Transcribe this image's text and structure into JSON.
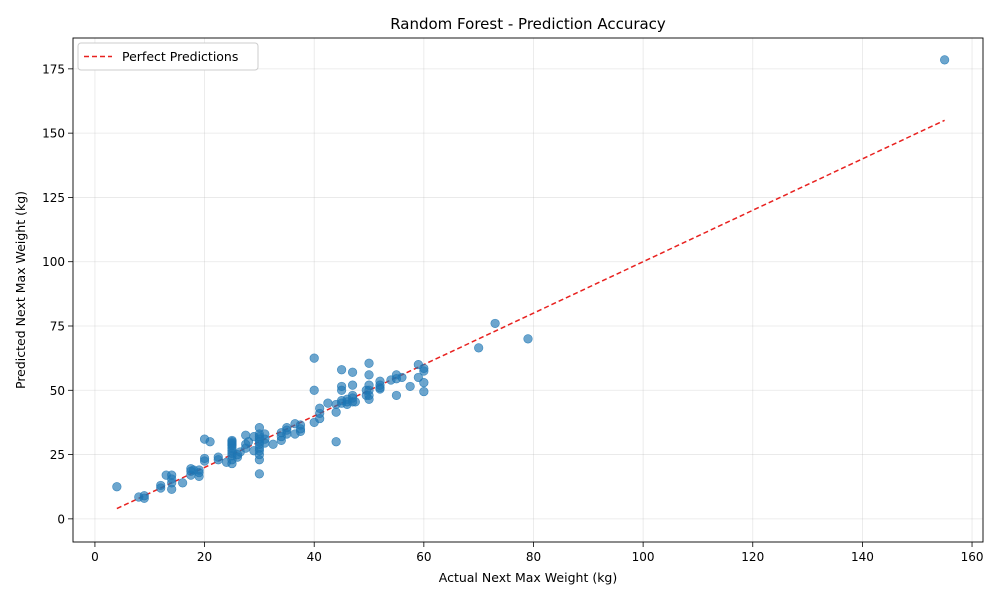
{
  "chart_data": {
    "type": "scatter",
    "title": "Random Forest - Prediction Accuracy",
    "xlabel": "Actual Next Max Weight (kg)",
    "ylabel": "Predicted Next Max Weight (kg)",
    "xlim": [
      -4,
      162
    ],
    "ylim": [
      -9,
      187
    ],
    "xticks": [
      0,
      20,
      40,
      60,
      80,
      100,
      120,
      140,
      160
    ],
    "yticks": [
      0,
      25,
      50,
      75,
      100,
      125,
      150,
      175
    ],
    "grid": true,
    "legend": {
      "position": "top-left",
      "entries": [
        "Perfect Predictions"
      ]
    },
    "series": [
      {
        "name": "",
        "kind": "scatter",
        "color": "#1f77b4",
        "x": [
          4,
          8,
          9,
          9,
          12,
          12,
          13,
          14,
          14,
          14,
          14,
          16,
          17.5,
          17.5,
          17.5,
          18,
          19,
          19,
          19,
          20,
          20,
          20,
          21,
          22.5,
          22.5,
          24,
          25,
          25,
          25,
          25,
          25,
          25,
          25,
          25,
          25,
          25,
          25,
          26,
          26,
          26.5,
          27.5,
          27.5,
          27.5,
          28,
          29,
          29,
          30,
          30,
          30,
          30,
          30,
          30,
          30,
          30,
          30,
          30,
          30,
          31,
          31,
          31,
          32.5,
          34,
          34,
          34,
          35,
          35,
          35,
          36.5,
          36.5,
          37.5,
          37.5,
          37.5,
          40,
          40,
          40,
          41,
          41,
          41,
          42.5,
          44,
          44,
          44,
          45,
          45,
          45,
          45,
          45,
          46,
          46,
          46,
          47,
          47,
          47,
          47,
          47,
          47.5,
          49.5,
          49.5,
          50,
          50,
          50,
          50,
          50,
          50,
          52,
          52,
          52,
          52,
          54,
          55,
          55,
          55,
          56,
          57.5,
          59,
          59,
          60,
          60,
          60,
          60,
          70,
          73,
          79,
          155
        ],
        "y": [
          12.5,
          8.5,
          8,
          9,
          12,
          13,
          17,
          11.5,
          14,
          15.5,
          17,
          14,
          17,
          18.5,
          19.5,
          19,
          16.5,
          18,
          19,
          22.5,
          23.5,
          31,
          30,
          23,
          24,
          22,
          21.5,
          23,
          24.5,
          25.5,
          26.5,
          27.5,
          28.5,
          29,
          29.5,
          30,
          30.5,
          24,
          25,
          26,
          27.5,
          29,
          32.5,
          30,
          26.5,
          32,
          17.5,
          23,
          25,
          26.5,
          27.5,
          29,
          30,
          31,
          32,
          33,
          35.5,
          29.5,
          31,
          33,
          29,
          30.5,
          32,
          33.5,
          33,
          34.5,
          35.5,
          33,
          37,
          34,
          35,
          36.5,
          37.5,
          50,
          62.5,
          39,
          41,
          43,
          45,
          30,
          41.5,
          44.5,
          45,
          50,
          51.5,
          58,
          46,
          44.5,
          45.5,
          46.5,
          45.5,
          47,
          48,
          52,
          57,
          45.5,
          48,
          50,
          46.5,
          48,
          50,
          52,
          56,
          60.5,
          50.5,
          51,
          52,
          53.5,
          54,
          48,
          54.5,
          56,
          55,
          51.5,
          55,
          60,
          49.5,
          53,
          57.5,
          58.5,
          66.5,
          76,
          70,
          178.5
        ]
      },
      {
        "name": "Perfect Predictions",
        "kind": "line",
        "color": "#e8211f",
        "x": [
          4,
          155
        ],
        "y": [
          4,
          155
        ]
      }
    ]
  }
}
